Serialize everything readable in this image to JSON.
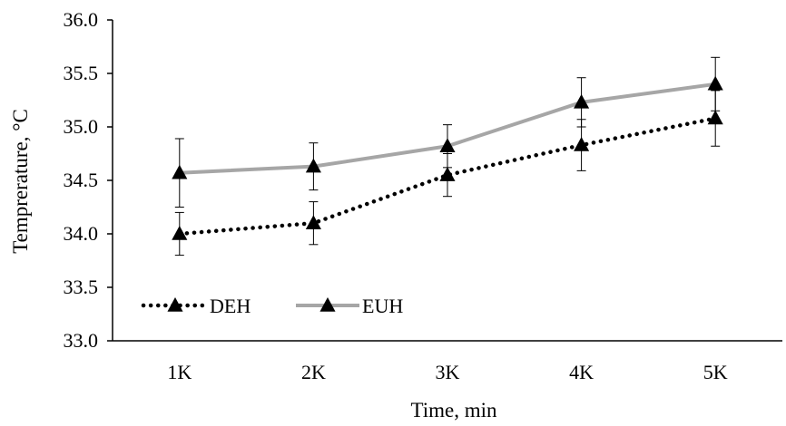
{
  "chart_data": {
    "type": "line",
    "xlabel": "Time, min",
    "ylabel": "Temprerature, °C",
    "categories": [
      "1K",
      "2K",
      "3K",
      "4K",
      "5K"
    ],
    "ylim": [
      33.0,
      36.0
    ],
    "yticks": [
      "33.0",
      "33.5",
      "34.0",
      "34.5",
      "35.0",
      "35.5",
      "36.0"
    ],
    "ytick_values": [
      33.0,
      33.5,
      34.0,
      34.5,
      35.0,
      35.5,
      36.0
    ],
    "grid": false,
    "legend_placement": "bottom-left",
    "series": [
      {
        "name": "DEH",
        "values": [
          34.0,
          34.1,
          34.55,
          34.83,
          35.08
        ],
        "error": [
          0.2,
          0.2,
          0.2,
          0.24,
          0.26
        ],
        "line_style": "dotted",
        "color": "#000000",
        "marker": "triangle"
      },
      {
        "name": "EUH",
        "values": [
          34.57,
          34.63,
          34.82,
          35.23,
          35.4
        ],
        "error": [
          0.32,
          0.22,
          0.2,
          0.23,
          0.25
        ],
        "line_style": "solid",
        "color": "#a6a6a6",
        "marker": "triangle"
      }
    ]
  }
}
